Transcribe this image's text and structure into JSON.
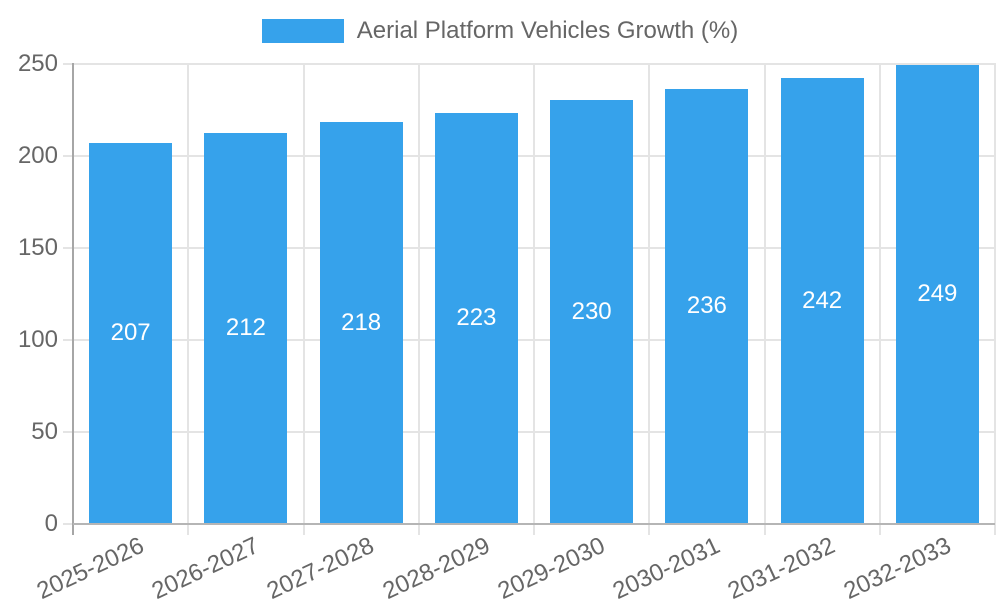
{
  "chart_data": {
    "type": "bar",
    "title": "",
    "xlabel": "",
    "ylabel": "",
    "legend_position": "top",
    "legend": [
      {
        "label": "Aerial Platform Vehicles Growth (%)",
        "color": "#36A2EB"
      }
    ],
    "categories": [
      "2025-2026",
      "2026-2027",
      "2027-2028",
      "2028-2029",
      "2029-2030",
      "2030-2031",
      "2031-2032",
      "2032-2033"
    ],
    "series": [
      {
        "name": "Aerial Platform Vehicles Growth (%)",
        "values": [
          207,
          212,
          218,
          223,
          230,
          236,
          242,
          249
        ]
      }
    ],
    "value_labels": [
      "207",
      "212",
      "218",
      "223",
      "230",
      "236",
      "242",
      "249"
    ],
    "ylim": [
      0,
      250
    ],
    "yticks": [
      "0",
      "50",
      "100",
      "150",
      "200",
      "250"
    ],
    "grid": true,
    "colors": {
      "bar": "#36A2EB",
      "value_label": "#FFFFFF",
      "axis_text": "#666666",
      "gridline": "#E4E4E4",
      "axis_line_y": "#A6A6A6",
      "axis_line_x": "#B5B5B5",
      "background": "#FFFFFF"
    }
  }
}
